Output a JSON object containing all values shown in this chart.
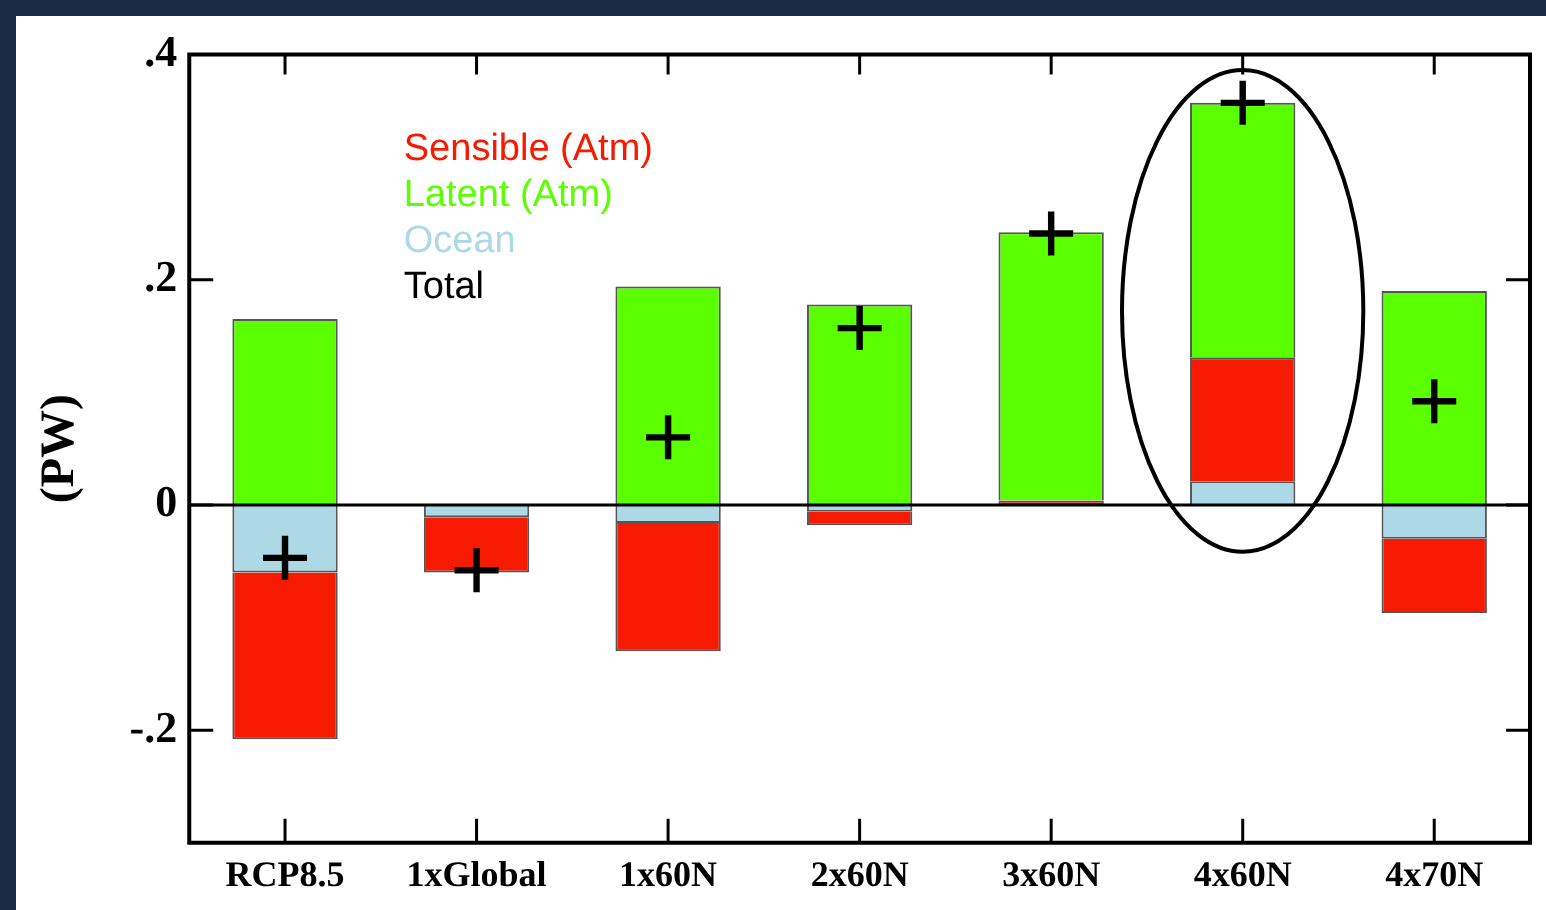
{
  "chart_data": {
    "type": "bar",
    "ylabel": "(PW)",
    "categories": [
      "RCP8.5",
      "1xGlobal",
      "1x60N",
      "2x60N",
      "3x60N",
      "4x60N",
      "4x70N"
    ],
    "stacked": true,
    "series": [
      {
        "name": "Ocean",
        "color": "#add8e6",
        "values": [
          -0.06,
          -0.011,
          -0.016,
          -0.006,
          0,
          0.021,
          -0.03
        ]
      },
      {
        "name": "Sensible (Atm)",
        "color": "#f51a00",
        "values": [
          -0.148,
          -0.049,
          -0.114,
          -0.012,
          0.004,
          0.11,
          -0.066
        ]
      },
      {
        "name": "Latent (Atm)",
        "color": "#5aff00",
        "values": [
          0.165,
          0,
          0.194,
          0.178,
          0.238,
          0.226,
          0.19
        ]
      },
      {
        "name": "Total",
        "type": "scatter",
        "color": "#000000",
        "values": [
          -0.047,
          -0.058,
          0.06,
          0.157,
          0.241,
          0.357,
          0.092
        ]
      }
    ],
    "ylim": [
      -0.3,
      0.4
    ],
    "yticks": [
      {
        "value": 0.4,
        "label": ".4"
      },
      {
        "value": 0.2,
        "label": ".2"
      },
      0,
      {
        "value": -0.2,
        "label": "-.2"
      }
    ],
    "ref_lines": [
      {
        "axis": "y",
        "value": 0
      }
    ],
    "grid": false,
    "legend": "top left",
    "marker": "cross"
  }
}
